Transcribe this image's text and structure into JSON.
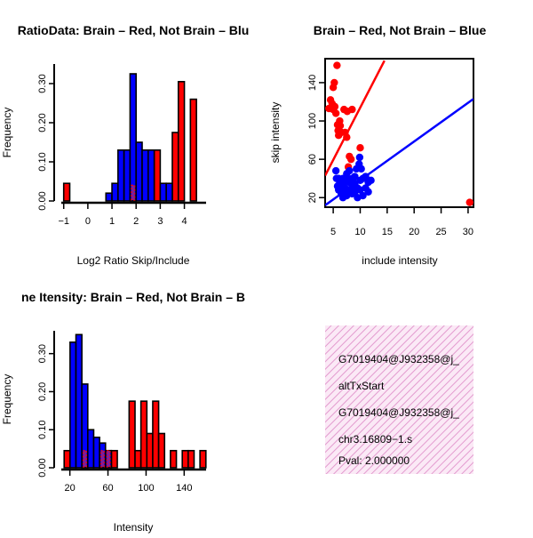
{
  "colors": {
    "red": "#ff0000",
    "blue": "#0000ff",
    "overlap_purple": "#7a1f9e",
    "info_text": "#000000",
    "pval_text": "#cc0000",
    "info_hatch": "#e39bcf",
    "info_bg": "#fbe9f6"
  },
  "chart_data": [
    {
      "id": "ratio",
      "type": "bar",
      "title": "RatioData: Brain – Red, Not Brain – Blu",
      "xlabel": "Log2 Ratio Skip/Include",
      "ylabel": "Frequency",
      "xlim": [
        -1.1,
        4.9
      ],
      "ylim": [
        0,
        0.35
      ],
      "xticks": [
        -1,
        0,
        1,
        2,
        3,
        4
      ],
      "xtick_labels": [
        "−1",
        "0",
        "1",
        "2",
        "3",
        "4"
      ],
      "yticks": [
        0.0,
        0.1,
        0.2,
        0.3
      ],
      "ytick_labels": [
        "0.00",
        "0.10",
        "0.20",
        "0.30"
      ],
      "bin_width": 0.25,
      "series": [
        {
          "name": "Brain",
          "color": "red",
          "bins": [
            {
              "x0": -1.0,
              "v": 0.045
            },
            {
              "x0": 1.75,
              "v": 0.04
            },
            {
              "x0": 2.75,
              "v": 0.13
            },
            {
              "x0": 3.5,
              "v": 0.175
            },
            {
              "x0": 3.75,
              "v": 0.305
            },
            {
              "x0": 4.25,
              "v": 0.26
            }
          ]
        },
        {
          "name": "Not Brain",
          "color": "blue",
          "bins": [
            {
              "x0": 0.75,
              "v": 0.02
            },
            {
              "x0": 1.0,
              "v": 0.045
            },
            {
              "x0": 1.25,
              "v": 0.13
            },
            {
              "x0": 1.5,
              "v": 0.13
            },
            {
              "x0": 1.75,
              "v": 0.325
            },
            {
              "x0": 2.0,
              "v": 0.15
            },
            {
              "x0": 2.25,
              "v": 0.13
            },
            {
              "x0": 2.5,
              "v": 0.13
            },
            {
              "x0": 3.0,
              "v": 0.045
            },
            {
              "x0": 3.25,
              "v": 0.045
            }
          ]
        }
      ]
    },
    {
      "id": "scatter",
      "type": "scatter",
      "title": "Brain – Red, Not Brain – Blue",
      "xlabel": "include intensity",
      "ylabel": "skip intensity",
      "xlim": [
        3.5,
        31
      ],
      "ylim": [
        10,
        165
      ],
      "xticks": [
        5,
        10,
        15,
        20,
        25,
        30
      ],
      "yticks": [
        20,
        60,
        100,
        140
      ],
      "series": [
        {
          "name": "Brain",
          "color": "red",
          "points": [
            [
              5.7,
              158
            ],
            [
              5.2,
              140
            ],
            [
              5.0,
              135
            ],
            [
              4.5,
              122
            ],
            [
              4.8,
              118
            ],
            [
              5.3,
              115
            ],
            [
              4.2,
              113
            ],
            [
              5.0,
              112
            ],
            [
              5.5,
              108
            ],
            [
              7.0,
              112
            ],
            [
              7.6,
              110
            ],
            [
              8.5,
              112
            ],
            [
              6.2,
              100
            ],
            [
              5.8,
              96
            ],
            [
              6.3,
              95
            ],
            [
              5.9,
              90
            ],
            [
              6.5,
              88
            ],
            [
              7.2,
              88
            ],
            [
              6.0,
              85
            ],
            [
              7.5,
              83
            ],
            [
              10.0,
              72
            ],
            [
              8.0,
              63
            ],
            [
              8.3,
              60
            ],
            [
              7.8,
              52
            ],
            [
              30.3,
              15
            ]
          ],
          "fit": [
            [
              3.5,
              43
            ],
            [
              14.5,
              163
            ]
          ]
        },
        {
          "name": "Not Brain",
          "color": "blue",
          "points": [
            [
              9.9,
              62
            ],
            [
              9.8,
              55
            ],
            [
              10.2,
              50
            ],
            [
              9.3,
              50
            ],
            [
              5.5,
              48
            ],
            [
              8.0,
              48
            ],
            [
              7.5,
              45
            ],
            [
              11.0,
              42
            ],
            [
              5.6,
              40
            ],
            [
              6.0,
              40
            ],
            [
              6.8,
              40
            ],
            [
              7.5,
              40
            ],
            [
              8.5,
              40
            ],
            [
              9.0,
              42
            ],
            [
              10.5,
              40
            ],
            [
              12.0,
              38
            ],
            [
              6.2,
              35
            ],
            [
              7.0,
              36
            ],
            [
              8.0,
              36
            ],
            [
              9.0,
              35
            ],
            [
              10.0,
              38
            ],
            [
              11.5,
              36
            ],
            [
              5.8,
              32
            ],
            [
              6.5,
              32
            ],
            [
              7.2,
              30
            ],
            [
              8.5,
              32
            ],
            [
              9.5,
              30
            ],
            [
              6.0,
              28
            ],
            [
              7.0,
              27
            ],
            [
              8.0,
              26
            ],
            [
              9.0,
              26
            ],
            [
              10.0,
              28
            ],
            [
              11.0,
              30
            ],
            [
              6.5,
              24
            ],
            [
              8.5,
              24
            ],
            [
              10.5,
              22
            ],
            [
              7.5,
              22
            ],
            [
              9.5,
              20
            ],
            [
              11.5,
              26
            ],
            [
              6.8,
              20
            ]
          ],
          "fit": [
            [
              3.5,
              12
            ],
            [
              31,
              123
            ]
          ]
        }
      ]
    },
    {
      "id": "intensity",
      "type": "bar",
      "title": "ne Itensity: Brain – Red, Not Brain – B",
      "xlabel": "Intensity",
      "ylabel": "Frequency",
      "xlim": [
        11,
        163
      ],
      "ylim": [
        0,
        0.36
      ],
      "xticks": [
        20,
        60,
        100,
        140
      ],
      "yticks": [
        0.0,
        0.1,
        0.2,
        0.3
      ],
      "ytick_labels": [
        "0.00",
        "0.10",
        "0.20",
        "0.30"
      ],
      "bin_width": 6.2,
      "series": [
        {
          "name": "Brain",
          "color": "red",
          "bins": [
            {
              "x0": 14.0,
              "v": 0.045
            },
            {
              "x0": 32.6,
              "v": 0.045
            },
            {
              "x0": 51.2,
              "v": 0.045
            },
            {
              "x0": 57.4,
              "v": 0.045
            },
            {
              "x0": 63.6,
              "v": 0.045
            },
            {
              "x0": 82.2,
              "v": 0.175
            },
            {
              "x0": 88.4,
              "v": 0.045
            },
            {
              "x0": 94.6,
              "v": 0.175
            },
            {
              "x0": 100.8,
              "v": 0.09
            },
            {
              "x0": 107.0,
              "v": 0.175
            },
            {
              "x0": 113.2,
              "v": 0.09
            },
            {
              "x0": 125.6,
              "v": 0.045
            },
            {
              "x0": 138.0,
              "v": 0.045
            },
            {
              "x0": 144.2,
              "v": 0.045
            },
            {
              "x0": 156.6,
              "v": 0.045
            }
          ]
        },
        {
          "name": "Not Brain",
          "color": "blue",
          "bins": [
            {
              "x0": 20.2,
              "v": 0.33
            },
            {
              "x0": 26.4,
              "v": 0.35
            },
            {
              "x0": 32.6,
              "v": 0.22
            },
            {
              "x0": 38.8,
              "v": 0.1
            },
            {
              "x0": 45.0,
              "v": 0.08
            },
            {
              "x0": 51.2,
              "v": 0.065
            },
            {
              "x0": 57.4,
              "v": 0.045
            }
          ]
        }
      ]
    }
  ],
  "info_box": {
    "lines": [
      "G7019404@J932358@j_",
      "altTxStart",
      "G7019404@J932358@j_",
      "chr3.16809−1.s"
    ],
    "pval": "Pval: 2.000000"
  }
}
